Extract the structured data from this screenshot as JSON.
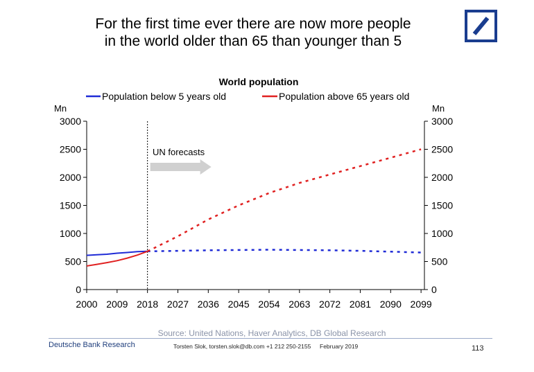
{
  "slide": {
    "headline_line1": "For the first time ever there are now more people",
    "headline_line2": "in the world older than 65 than younger than 5",
    "logo_icon": "deutsche-bank-logo-icon",
    "source": "Source: United Nations, Haver Analytics, DB Global Research",
    "footer": {
      "brand": "Deutsche Bank Research",
      "contact": "Torsten Slok, torsten.slok@db.com +1 212 250-2155",
      "date": "February 2019",
      "page": "113"
    },
    "colors": {
      "brand_blue": "#1a3d8f",
      "series_below5": "#1f2bd6",
      "series_above65": "#e02020",
      "source_text": "#8a93a8"
    }
  },
  "chart_data": {
    "type": "line",
    "title": "World population",
    "ylabel_left": "Mn",
    "ylabel_right": "Mn",
    "ylim": [
      0,
      3000
    ],
    "yticks": [
      0,
      500,
      1000,
      1500,
      2000,
      2500,
      3000
    ],
    "xlim": [
      2000,
      2100
    ],
    "xticks": [
      2000,
      2009,
      2018,
      2027,
      2036,
      2045,
      2054,
      2063,
      2072,
      2081,
      2090,
      2099
    ],
    "legend_position": "top",
    "grid": false,
    "annotation": {
      "text": "UN forecasts",
      "x": 2018
    },
    "series": [
      {
        "name": "Population below 5 years old",
        "color": "#1f2bd6",
        "historical": [
          [
            2000,
            610
          ],
          [
            2003,
            620
          ],
          [
            2006,
            630
          ],
          [
            2009,
            648
          ],
          [
            2012,
            660
          ],
          [
            2015,
            675
          ],
          [
            2018,
            682
          ]
        ],
        "forecast": [
          [
            2018,
            682
          ],
          [
            2027,
            690
          ],
          [
            2036,
            700
          ],
          [
            2045,
            705
          ],
          [
            2054,
            710
          ],
          [
            2063,
            705
          ],
          [
            2072,
            700
          ],
          [
            2081,
            690
          ],
          [
            2090,
            675
          ],
          [
            2099,
            660
          ]
        ]
      },
      {
        "name": "Population above 65 years old",
        "color": "#e02020",
        "historical": [
          [
            2000,
            420
          ],
          [
            2003,
            450
          ],
          [
            2006,
            480
          ],
          [
            2009,
            515
          ],
          [
            2012,
            560
          ],
          [
            2015,
            615
          ],
          [
            2018,
            682
          ]
        ],
        "forecast": [
          [
            2018,
            682
          ],
          [
            2027,
            950
          ],
          [
            2036,
            1250
          ],
          [
            2045,
            1500
          ],
          [
            2054,
            1720
          ],
          [
            2063,
            1900
          ],
          [
            2072,
            2050
          ],
          [
            2081,
            2200
          ],
          [
            2090,
            2350
          ],
          [
            2099,
            2500
          ]
        ]
      }
    ]
  }
}
